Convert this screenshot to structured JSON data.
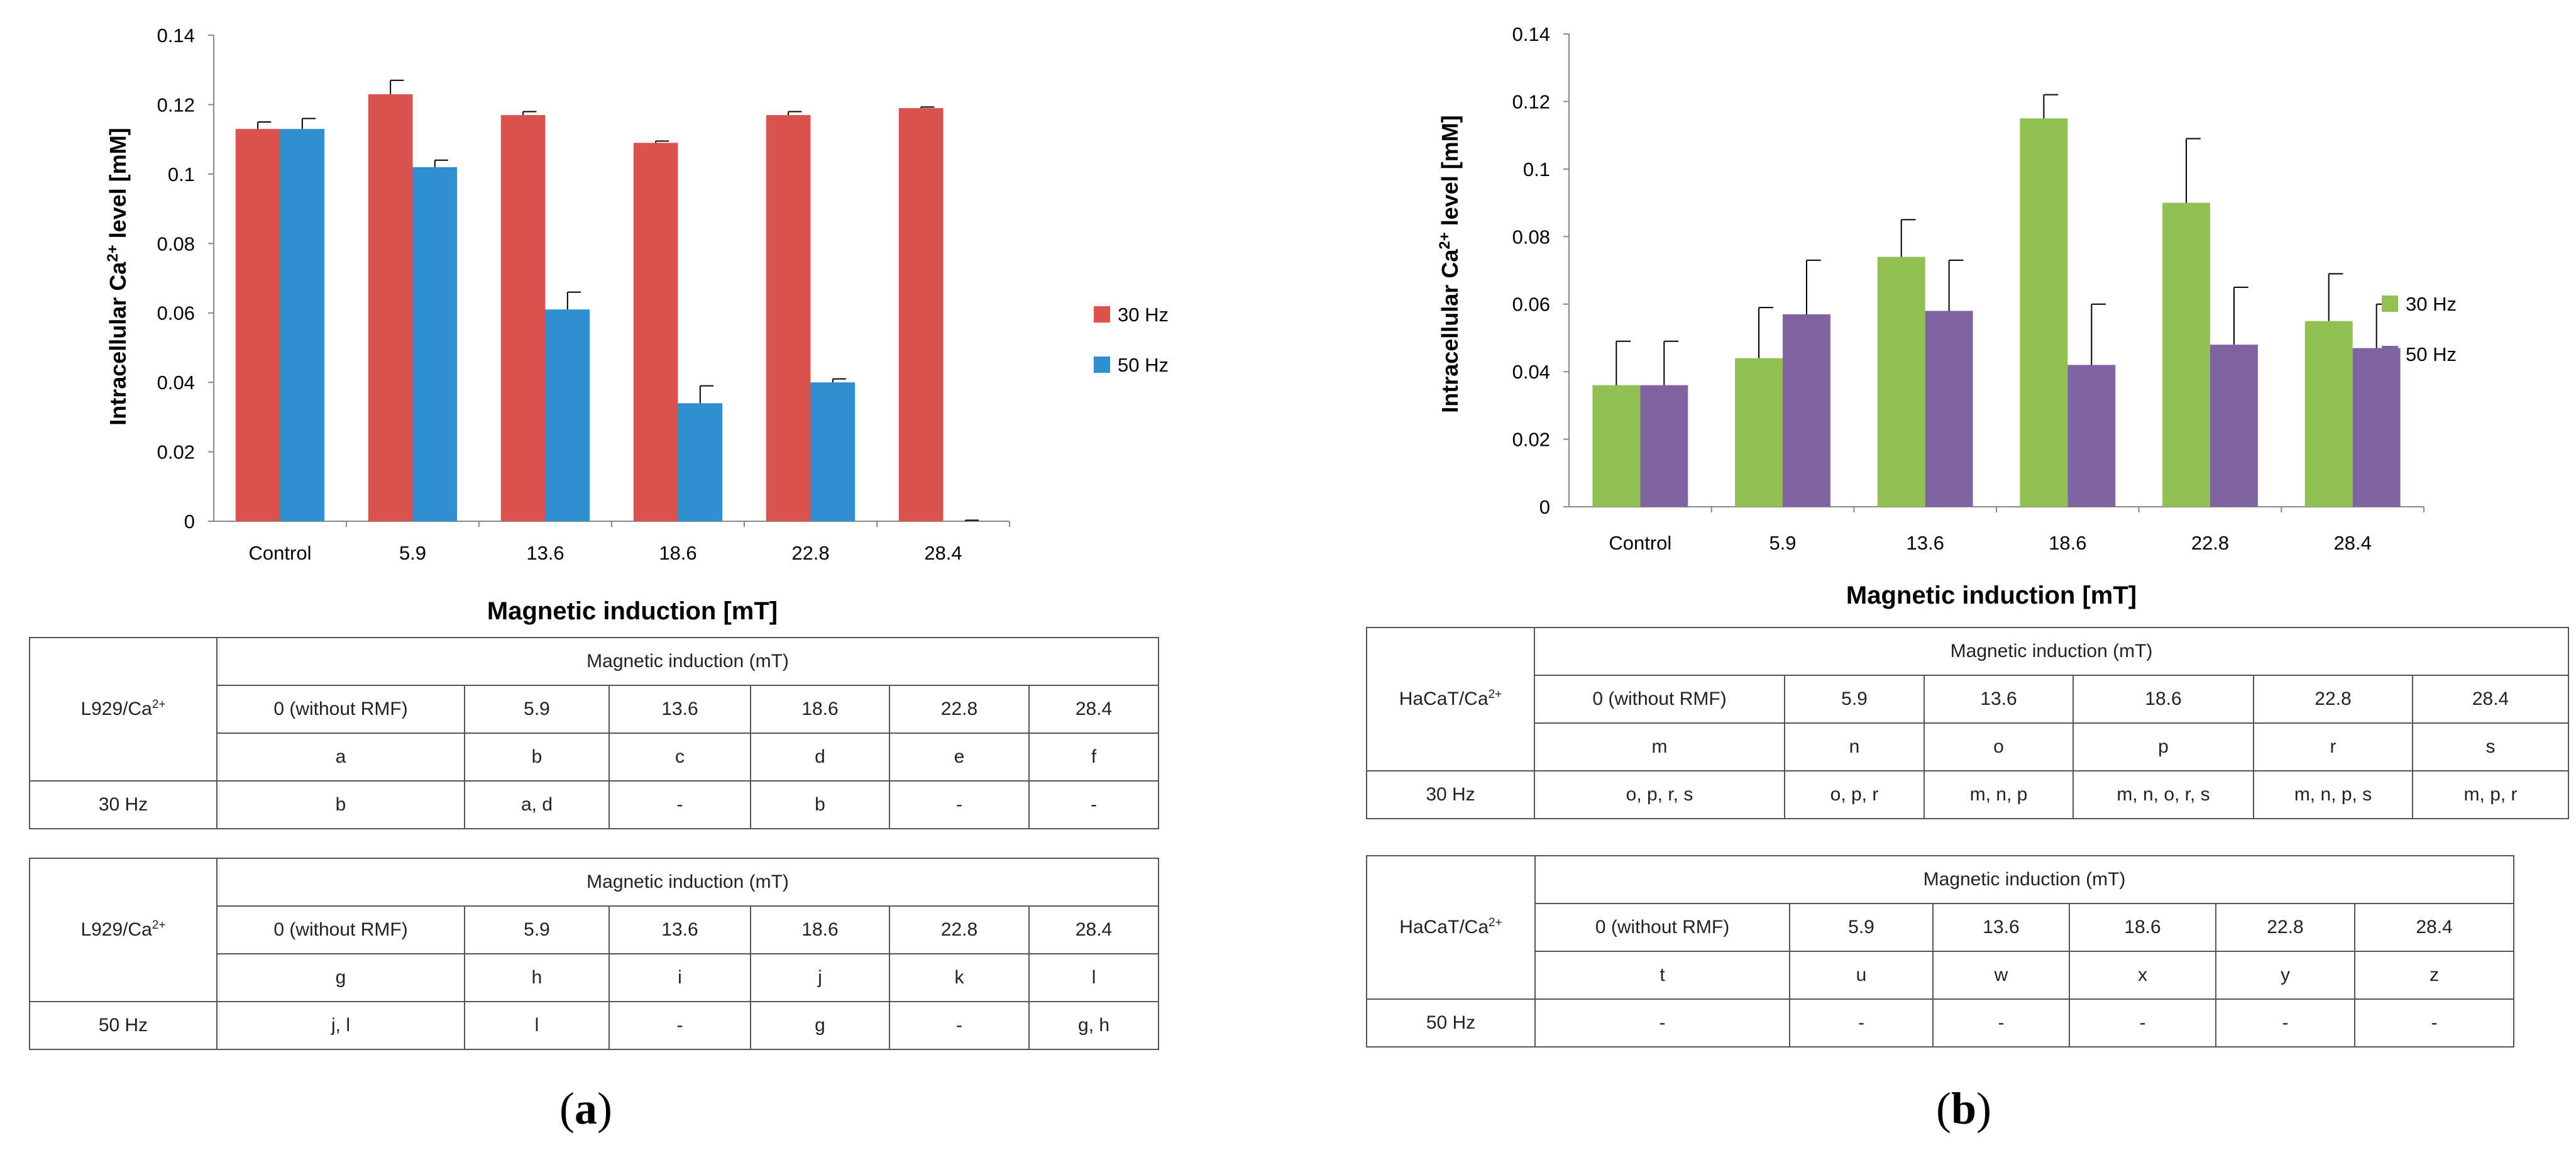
{
  "chart_data": [
    {
      "panel": "a",
      "type": "bar",
      "categories": [
        "Control",
        "5.9",
        "13.6",
        "18.6",
        "22.8",
        "28.4"
      ],
      "series": [
        {
          "name": "30 Hz",
          "color": "#d9534f",
          "values": [
            0.113,
            0.123,
            0.117,
            0.109,
            0.117,
            0.119
          ],
          "errors": [
            0.002,
            0.004,
            0.001,
            0.0005,
            0.001,
            0.0003
          ]
        },
        {
          "name": "50 Hz",
          "color": "#2f8fcf",
          "values": [
            0.113,
            0.102,
            0.061,
            0.034,
            0.04,
            0.0
          ],
          "errors": [
            0.003,
            0.002,
            0.005,
            0.005,
            0.001,
            0.0003
          ]
        }
      ],
      "yticks": [
        "0",
        "0.02",
        "0.04",
        "0.06",
        "0.08",
        "0.1",
        "0.12",
        "0.14"
      ],
      "ylim": [
        0,
        0.14
      ],
      "ylabel_main": "Intracellular Ca",
      "ylabel_sup": "2+",
      "ylabel_tail": " level [mM]",
      "xlabel": "Magnetic induction [mT]",
      "legend_position": "right"
    },
    {
      "panel": "b",
      "type": "bar",
      "categories": [
        "Control",
        "5.9",
        "13.6",
        "18.6",
        "22.8",
        "28.4"
      ],
      "series": [
        {
          "name": "30 Hz",
          "color": "#92c055",
          "values": [
            0.036,
            0.044,
            0.074,
            0.115,
            0.09,
            0.055
          ],
          "errors": [
            0.013,
            0.015,
            0.011,
            0.007,
            0.019,
            0.014
          ]
        },
        {
          "name": "50 Hz",
          "color": "#8064a2",
          "values": [
            0.036,
            0.057,
            0.058,
            0.042,
            0.048,
            0.047
          ],
          "errors": [
            0.013,
            0.016,
            0.015,
            0.018,
            0.017,
            0.013
          ]
        }
      ],
      "yticks": [
        "0",
        "0.02",
        "0.04",
        "0.06",
        "0.08",
        "0.1",
        "0.12",
        "0.14"
      ],
      "ylim": [
        0,
        0.14
      ],
      "ylabel_main": "Intracellular Ca",
      "ylabel_sup": "2+",
      "ylabel_tail": " level [mM]",
      "xlabel": "Magnetic induction [mT]",
      "legend_position": "right"
    }
  ],
  "tables": {
    "a30": {
      "cell_prefix": "L929/Ca",
      "cell_sup": "2+",
      "header": "Magnetic induction (mT)",
      "inductions": [
        "0 (without RMF)",
        "5.9",
        "13.6",
        "18.6",
        "22.8",
        "28.4"
      ],
      "letters": [
        "a",
        "b",
        "c",
        "d",
        "e",
        "f"
      ],
      "freq": "30 Hz",
      "sig": [
        "b",
        "a, d",
        "-",
        "b",
        "-",
        "-"
      ]
    },
    "a50": {
      "cell_prefix": "L929/Ca",
      "cell_sup": "2+",
      "header": "Magnetic induction (mT)",
      "inductions": [
        "0 (without RMF)",
        "5.9",
        "13.6",
        "18.6",
        "22.8",
        "28.4"
      ],
      "letters": [
        "g",
        "h",
        "i",
        "j",
        "k",
        "l"
      ],
      "freq": "50 Hz",
      "sig": [
        "j, l",
        "l",
        "-",
        "g",
        "-",
        "g, h"
      ]
    },
    "b30": {
      "cell_prefix": "HaCaT/Ca",
      "cell_sup": "2+",
      "header": "Magnetic induction (mT)",
      "inductions": [
        "0 (without RMF)",
        "5.9",
        "13.6",
        "18.6",
        "22.8",
        "28.4"
      ],
      "letters": [
        "m",
        "n",
        "o",
        "p",
        "r",
        "s"
      ],
      "freq": "30 Hz",
      "sig": [
        "o, p, r, s",
        "o, p, r",
        "m, n, p",
        "m, n, o, r, s",
        "m, n, p, s",
        "m, p, r"
      ]
    },
    "b50": {
      "cell_prefix": "HaCaT/Ca",
      "cell_sup": "2+",
      "header": "Magnetic induction (mT)",
      "inductions": [
        "0 (without RMF)",
        "5.9",
        "13.6",
        "18.6",
        "22.8",
        "28.4"
      ],
      "letters": [
        "t",
        "u",
        "w",
        "x",
        "y",
        "z"
      ],
      "freq": "50 Hz",
      "sig": [
        "-",
        "-",
        "-",
        "-",
        "-",
        "-"
      ]
    }
  },
  "panel_labels": {
    "a": {
      "open": "(",
      "letter": "a",
      "close": ")"
    },
    "b": {
      "open": "(",
      "letter": "b",
      "close": ")"
    }
  }
}
